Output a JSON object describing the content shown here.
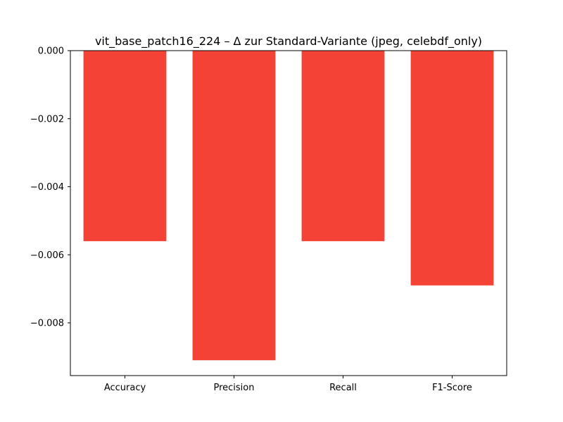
{
  "chart_data": {
    "type": "bar",
    "title": "vit_base_patch16_224 – Δ zur Standard-Variante (jpeg, celebdf_only)",
    "xlabel": "",
    "ylabel": "",
    "categories": [
      "Accuracy",
      "Precision",
      "Recall",
      "F1-Score"
    ],
    "values": [
      -0.0056,
      -0.0091,
      -0.0056,
      -0.0069
    ],
    "ylim": [
      -0.00955,
      0.0
    ],
    "yticks": [
      0.0,
      -0.002,
      -0.004,
      -0.006,
      -0.008
    ],
    "ytick_labels": [
      "0.000",
      "−0.002",
      "−0.004",
      "−0.006",
      "−0.008"
    ],
    "bar_color": "#f44336",
    "grid": false,
    "legend": "none"
  }
}
